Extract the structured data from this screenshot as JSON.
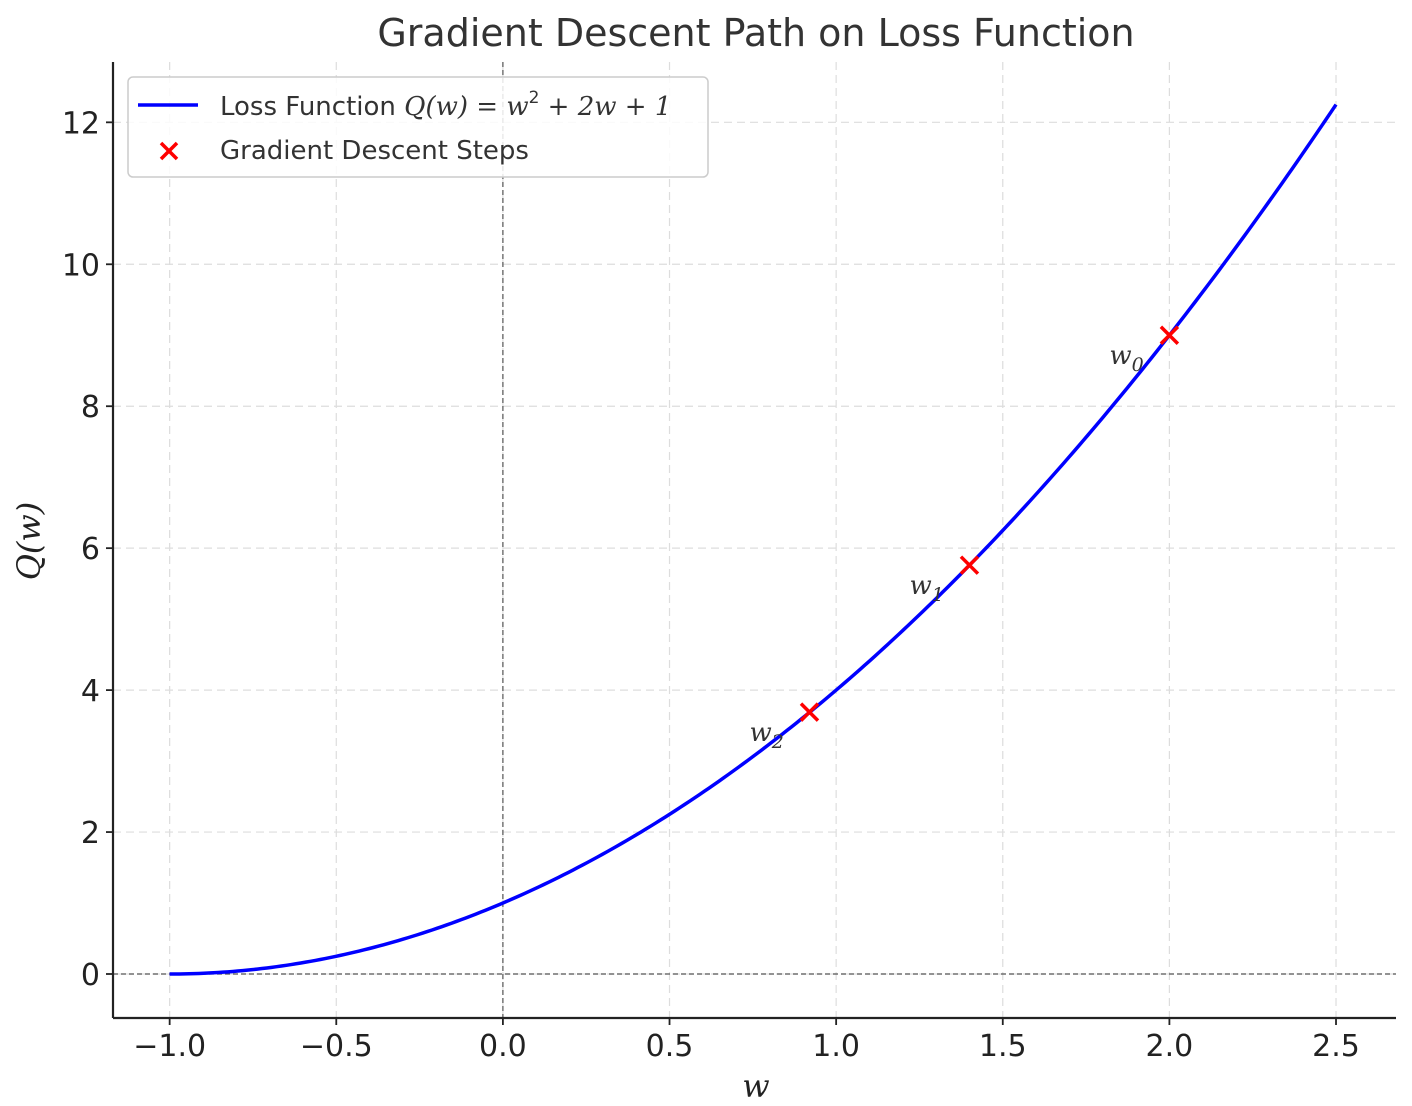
{
  "chart_data": {
    "type": "line",
    "title": "Gradient Descent Path on Loss Function",
    "xlabel": "w",
    "ylabel": "Q(w)",
    "xlim": [
      -1.17,
      2.68
    ],
    "ylim": [
      -0.62,
      12.85
    ],
    "x_ticks": [
      -1.0,
      -0.5,
      0.0,
      0.5,
      1.0,
      1.5,
      2.0,
      2.5
    ],
    "x_tick_labels": [
      "−1.0",
      "−0.5",
      "0.0",
      "0.5",
      "1.0",
      "1.5",
      "2.0",
      "2.5"
    ],
    "y_ticks": [
      0,
      2,
      4,
      6,
      8,
      10,
      12
    ],
    "y_tick_labels": [
      "0",
      "2",
      "4",
      "6",
      "8",
      "10",
      "12"
    ],
    "grid": true,
    "legend_position": "top-left",
    "reference_lines": {
      "x": 0,
      "y": 0
    },
    "series": [
      {
        "name": "Loss Function Q(w) = w² + 2w + 1",
        "type": "line",
        "color": "#0000ff",
        "function": "w^2 + 2w + 1",
        "x_range": [
          -1.0,
          2.5
        ]
      },
      {
        "name": "Gradient Descent Steps",
        "type": "scatter",
        "marker": "x",
        "color": "#ff0000",
        "x": [
          2.0,
          1.4,
          0.92
        ],
        "y": [
          9.0,
          5.76,
          3.69
        ]
      }
    ],
    "annotations": [
      {
        "base": "w",
        "sub": "0",
        "x": 2.0,
        "y": 9.0
      },
      {
        "base": "w",
        "sub": "1",
        "x": 1.4,
        "y": 5.76
      },
      {
        "base": "w",
        "sub": "2",
        "x": 0.92,
        "y": 3.69
      }
    ],
    "legend": {
      "line_label": {
        "prefix": "Loss Function ",
        "formula_lhs": "Q(w) = w",
        "sup": "2",
        "formula_rhs": " + 2w + 1"
      },
      "scatter_label": "Gradient Descent Steps"
    }
  }
}
